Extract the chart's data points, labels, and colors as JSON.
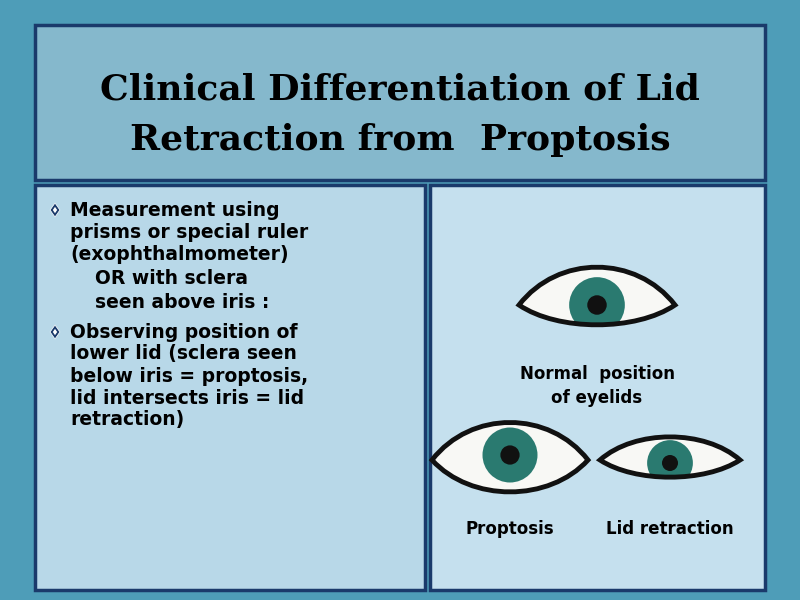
{
  "title_line1": "Clinical Differentiation of Lid",
  "title_line2": "Retraction from  Proptosis",
  "title_fontsize": 26,
  "title_color": "#000000",
  "title_bg": "#85b8cc",
  "title_border": "#1a3a6b",
  "background_color": "#4e9db8",
  "left_box_bg": "#b8d8e8",
  "left_box_border": "#1a3a6b",
  "right_box_bg": "#c5e0ee",
  "right_box_border": "#1a3a6b",
  "bullet_color": "#1a3a6b",
  "text_color": "#000000",
  "iris_color": "#2a7a70",
  "pupil_color": "#111111",
  "eyelid_color": "#111111",
  "sclera_color": "#f8f8f5",
  "bullet1_line1": "Measurement using",
  "bullet1_line2": "prisms or special ruler",
  "bullet1_line3": "(exophthalmometer)",
  "bullet1_sub1": "OR with sclera",
  "bullet1_sub2": "seen above iris :",
  "bullet2_line1": "Observing position of",
  "bullet2_line2": "lower lid (sclera seen",
  "bullet2_line3": "below iris = proptosis,",
  "bullet2_line4": "lid intersects iris = lid",
  "bullet2_line5": "retraction)",
  "label_normal": "Normal  position\nof eyelids",
  "label_proptosis": "Proptosis",
  "label_lid": "Lid retraction",
  "text_fontsize": 13.5,
  "label_fontsize": 12
}
